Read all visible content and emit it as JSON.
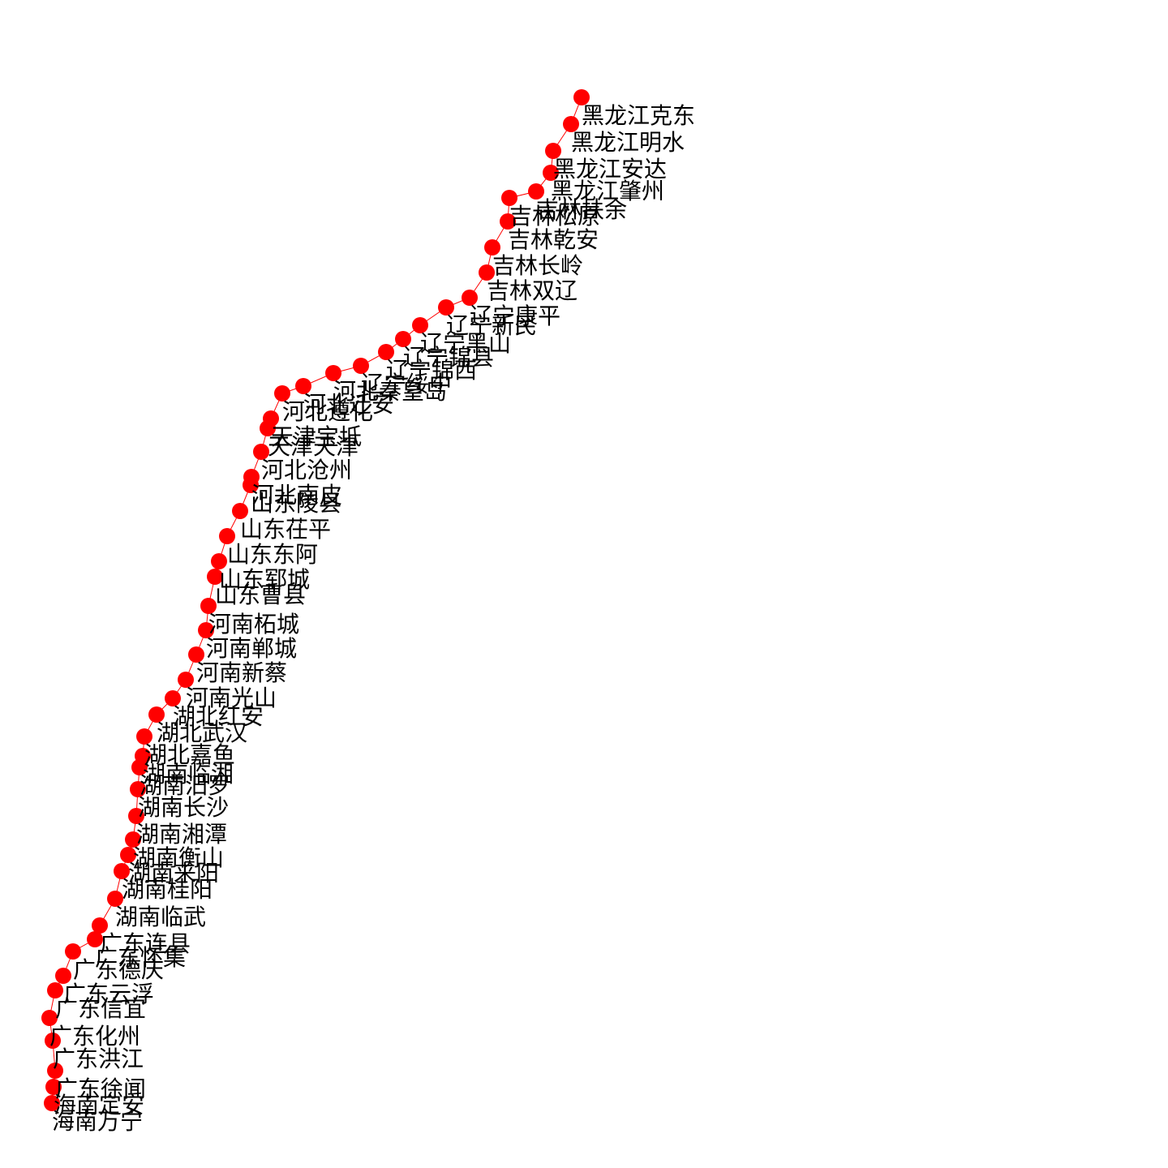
{
  "colors": {
    "node": "#ff0000",
    "edge": "#ff0000",
    "label": "#000000"
  },
  "stations": [
    "黑龙江克东",
    "黑龙江明水",
    "黑龙江安达",
    "黑龙江肇州",
    "吉林扶余",
    "吉林松原",
    "吉林乾安",
    "吉林长岭",
    "吉林双辽",
    "辽宁康平",
    "辽宁新民",
    "辽宁黑山",
    "辽宁锦县",
    "辽宁锦西",
    "辽宁绥中",
    "河北秦皇岛",
    "河北迁安",
    "河北遵化",
    "天津宝坻",
    "天津天津",
    "河北沧州",
    "河北南皮",
    "山东陵县",
    "山东茌平",
    "山东东阿",
    "山东郓城",
    "山东曹县",
    "河南柘城",
    "河南郸城",
    "河南新蔡",
    "河南光山",
    "湖北红安",
    "湖北武汉",
    "湖北嘉鱼",
    "湖南临湘",
    "湖南汨罗",
    "湖南长沙",
    "湖南湘潭",
    "湖南衡山",
    "湖南来阳",
    "湖南桂阳",
    "湖南临武",
    "广东连县",
    "广东怀集",
    "广东德庆",
    "广东云浮",
    "广东信宜",
    "广东化州",
    "广东洪江",
    "广东徐闻",
    "海南定安",
    "海南万宁"
  ]
}
